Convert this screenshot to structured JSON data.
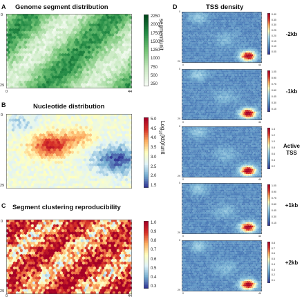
{
  "panels": {
    "A": {
      "letter": "A",
      "title": "Genome segment distribution",
      "colorbar_label": "segment/unit",
      "colorbar_ticks": [
        "2250",
        "2000",
        "1750",
        "1500",
        "1250",
        "1000",
        "750",
        "500",
        "250"
      ],
      "axis_ticks": {
        "x0": "0",
        "x1": "44",
        "y0": "0",
        "y1": "29"
      },
      "colors": [
        "#f7fcf5",
        "#c7e9c0",
        "#74c476",
        "#238b45",
        "#00441b"
      ]
    },
    "B": {
      "letter": "B",
      "title": "Nucleotide distribution",
      "colorbar_label": "Log10(kb)/unit",
      "colorbar_ticks": [
        "5.0",
        "4.5",
        "4.0",
        "3.5",
        "3.0",
        "2.5",
        "2.0",
        "1.5"
      ],
      "axis_ticks": {
        "x0": "0",
        "x1": "44",
        "y0": "0",
        "y1": "29"
      },
      "colors": [
        "#313695",
        "#74add1",
        "#e0f3f8",
        "#ffffbf",
        "#fdae61",
        "#d73027",
        "#a50026"
      ]
    },
    "C": {
      "letter": "C",
      "title": "Segment clustering reproducibility",
      "colorbar_ticks": [
        "1.0",
        "0.9",
        "0.8",
        "0.7",
        "0.6",
        "0.5",
        "0.4",
        "0.3"
      ],
      "axis_ticks": {
        "x0": "0",
        "x1": "44",
        "y0": "0",
        "y1": "29"
      },
      "colors": [
        "#313695",
        "#74add1",
        "#e0f3f8",
        "#ffffbf",
        "#fdae61",
        "#d73027",
        "#a50026"
      ]
    },
    "D": {
      "letter": "D",
      "title": "TSS density",
      "axis_ticks": {
        "x0": "0",
        "x1": "44",
        "y0": "0",
        "y1": "29"
      },
      "colors": [
        "#313695",
        "#4575b4",
        "#74add1",
        "#abd9e9",
        "#ffffbf",
        "#fdae61",
        "#d73027",
        "#a50026"
      ],
      "rows": [
        {
          "label": "-2kb",
          "ticks": [
            "0.40",
            "0.35",
            "0.30",
            "0.25",
            "0.20",
            "0.15",
            "0.10",
            "0.05"
          ]
        },
        {
          "label": "-1kb",
          "ticks": [
            "1.05",
            "0.90",
            "0.75",
            "0.60",
            "0.45",
            "0.30",
            "0.15"
          ]
        },
        {
          "label": "Active TSS",
          "ticks": [
            "1.4",
            "1.2",
            "1.0",
            "0.8",
            "0.6",
            "0.4",
            "0.2"
          ]
        },
        {
          "label": "+1kb",
          "ticks": [
            "1.05",
            "0.90",
            "0.75",
            "0.60",
            "0.45",
            "0.30",
            "0.15"
          ]
        },
        {
          "label": "+2kb",
          "ticks": [
            "0.8",
            "0.7",
            "0.6",
            "0.5",
            "0.4",
            "0.3",
            "0.2",
            "0.1"
          ]
        }
      ]
    }
  }
}
